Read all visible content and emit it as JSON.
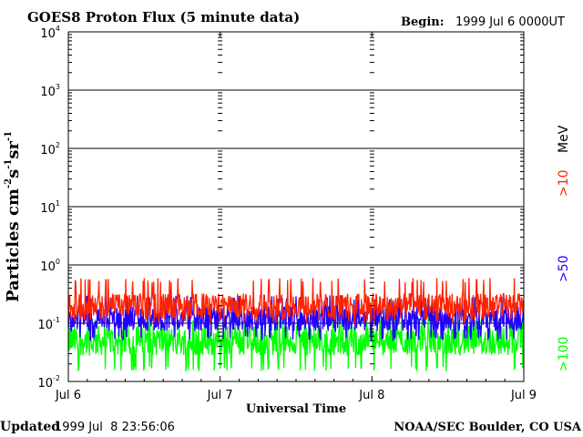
{
  "chart_data": {
    "type": "line",
    "title": "GOES8 Proton Flux (5 minute data)",
    "begin_label": "Begin:",
    "begin_value": "1999 Jul 6 0000UT",
    "ylabel_main": "Particles cm",
    "ylabel_exp1": "-2",
    "ylabel_mid1": "s",
    "ylabel_exp2": "-1",
    "ylabel_mid2": "sr",
    "ylabel_exp3": "-1",
    "xlabel": "Universal Time",
    "yscale": "log",
    "ylim": [
      0.01,
      10000
    ],
    "yticks": [
      {
        "base": "10",
        "exp": "-2",
        "value": 0.01
      },
      {
        "base": "10",
        "exp": "-1",
        "value": 0.1
      },
      {
        "base": "10",
        "exp": "0",
        "value": 1
      },
      {
        "base": "10",
        "exp": "1",
        "value": 10
      },
      {
        "base": "10",
        "exp": "2",
        "value": 100
      },
      {
        "base": "10",
        "exp": "3",
        "value": 1000
      },
      {
        "base": "10",
        "exp": "4",
        "value": 10000
      }
    ],
    "x_days": [
      "Jul 6",
      "Jul 7",
      "Jul 8",
      "Jul 9"
    ],
    "xlim_days": [
      0,
      3
    ],
    "grid": true,
    "series": [
      {
        "name": ">10 MeV",
        "label_main": ">10",
        "label_unit": "MeV",
        "color": "#ff2200",
        "typical": 0.2,
        "range": [
          0.1,
          0.6
        ]
      },
      {
        "name": ">50",
        "label_main": ">50",
        "color": "#2200ff",
        "typical": 0.12,
        "range": [
          0.05,
          0.3
        ]
      },
      {
        "name": ">100",
        "label_main": ">100",
        "color": "#00ff00",
        "typical": 0.05,
        "range": [
          0.015,
          0.13
        ]
      }
    ]
  },
  "footer": {
    "updated_label": "Updated",
    "updated_value": "1999 Jul  8 23:56:06",
    "credit": "NOAA/SEC Boulder, CO USA"
  }
}
